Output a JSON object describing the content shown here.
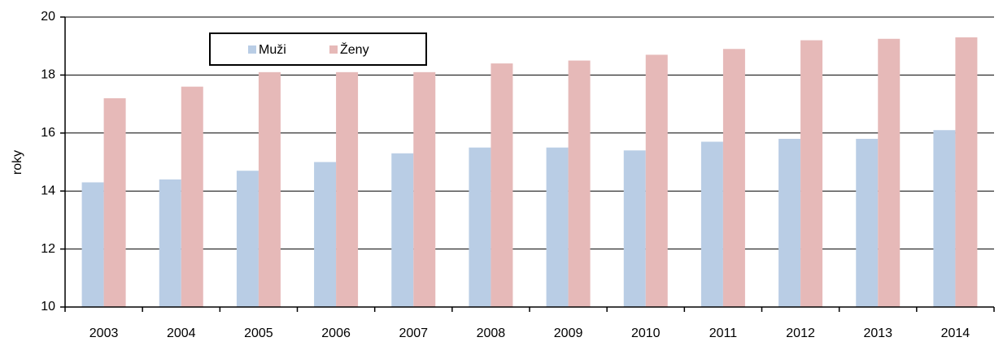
{
  "chart_data": {
    "type": "bar",
    "y_label": "roky",
    "categories": [
      "2003",
      "2004",
      "2005",
      "2006",
      "2007",
      "2008",
      "2009",
      "2010",
      "2011",
      "2012",
      "2013",
      "2014"
    ],
    "series": [
      {
        "name": "Muži",
        "color": "#b9cde5",
        "values": [
          14.3,
          14.4,
          14.7,
          15.0,
          15.3,
          15.5,
          15.5,
          15.4,
          15.7,
          15.8,
          15.8,
          16.1
        ]
      },
      {
        "name": "Ženy",
        "color": "#e6b9b8",
        "values": [
          17.2,
          17.6,
          18.1,
          18.1,
          18.1,
          18.4,
          18.5,
          18.7,
          18.9,
          19.2,
          19.25,
          19.3
        ]
      }
    ],
    "ylim": [
      10,
      20
    ],
    "yticks": [
      10,
      12,
      14,
      16,
      18,
      20
    ],
    "grid": true
  }
}
